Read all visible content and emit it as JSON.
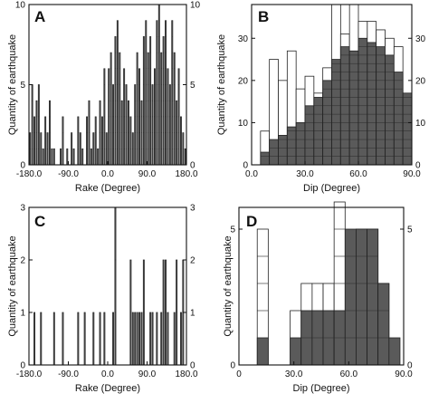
{
  "chart_data": [
    {
      "panel": "A",
      "type": "bar",
      "xlabel": "Rake (Degree)",
      "ylabel": "Quantity of earthquake",
      "xlim": [
        -180,
        180
      ],
      "ylim": [
        0,
        10
      ],
      "x_ticks": [
        "-180.0",
        "-90.0",
        "0.0",
        "90.0",
        "180.0"
      ],
      "y_ticks": [
        "0",
        "5",
        "10"
      ],
      "bin_width": 5,
      "bins_start": [
        -180,
        -175,
        -170,
        -165,
        -160,
        -155,
        -150,
        -145,
        -140,
        -135,
        -130,
        -125,
        -120,
        -115,
        -110,
        -105,
        -100,
        -95,
        -90,
        -85,
        -80,
        -75,
        -70,
        -65,
        -60,
        -55,
        -50,
        -45,
        -40,
        -35,
        -30,
        -25,
        -20,
        -15,
        -10,
        -5,
        0,
        5,
        10,
        15,
        20,
        25,
        30,
        35,
        40,
        45,
        50,
        55,
        60,
        65,
        70,
        75,
        80,
        85,
        90,
        95,
        100,
        105,
        110,
        115,
        120,
        125,
        130,
        135,
        140,
        145,
        150,
        155,
        160,
        165,
        170,
        175
      ],
      "values": [
        2,
        5,
        3,
        4,
        5,
        2,
        1,
        3,
        2,
        4,
        1,
        1,
        0,
        0,
        1,
        3,
        0,
        1,
        0,
        2,
        1,
        0,
        3,
        2,
        1,
        0,
        3,
        4,
        1,
        2,
        3,
        1,
        4,
        3,
        6,
        2,
        6,
        7,
        5,
        8,
        9,
        7,
        4,
        6,
        5,
        4,
        3,
        2,
        5,
        7,
        6,
        4,
        8,
        9,
        7,
        8,
        5,
        6,
        9,
        10,
        7,
        8,
        9,
        6,
        5,
        9,
        7,
        4,
        6,
        3,
        2,
        1
      ]
    },
    {
      "panel": "B",
      "type": "bar",
      "xlabel": "Dip (Degree)",
      "ylabel": "Quantity of earthquake",
      "xlim": [
        0,
        90
      ],
      "ylim": [
        0,
        38
      ],
      "x_ticks": [
        "0.0",
        "30.0",
        "60.0",
        "90.0"
      ],
      "y_ticks": [
        "0",
        "10",
        "20",
        "30"
      ],
      "bin_width": 5,
      "bins_start": [
        5,
        10,
        15,
        20,
        25,
        30,
        35,
        40,
        45,
        50,
        55,
        60,
        65,
        70,
        75,
        80,
        85
      ],
      "series": [
        {
          "name": "filled",
          "values": [
            3,
            6,
            7,
            9,
            10,
            14,
            16,
            20,
            25,
            28,
            27,
            30,
            29,
            28,
            26,
            22,
            17
          ]
        },
        {
          "name": "open",
          "values": [
            8,
            25,
            20,
            27,
            18,
            21,
            17,
            23,
            38,
            31,
            38,
            34,
            34,
            32,
            30,
            28,
            16
          ]
        }
      ]
    },
    {
      "panel": "C",
      "type": "bar",
      "xlabel": "Rake (Degree)",
      "ylabel": "Quantity of earthquake",
      "xlim": [
        -180,
        180
      ],
      "ylim": [
        0,
        3
      ],
      "x_ticks": [
        "-180.0",
        "-90.0",
        "0.0",
        "90.0",
        "180.0"
      ],
      "y_ticks": [
        "0",
        "1",
        "2",
        "3"
      ],
      "bin_width": 5,
      "bins_start": [
        -170,
        -155,
        -125,
        -105,
        -70,
        -55,
        -35,
        -20,
        -10,
        10,
        15,
        50,
        55,
        60,
        65,
        70,
        75,
        80,
        95,
        100,
        110,
        120,
        125,
        130,
        135,
        150,
        155,
        165,
        170
      ],
      "values": [
        1,
        1,
        1,
        1,
        1,
        1,
        1,
        1,
        1,
        1,
        3,
        2,
        1,
        1,
        1,
        1,
        1,
        2,
        1,
        1,
        1,
        1,
        2,
        2,
        1,
        1,
        2,
        1,
        2
      ]
    },
    {
      "panel": "D",
      "type": "bar",
      "xlabel": "Dip (Degree)",
      "ylabel": "Quantity of earthquake",
      "xlim": [
        0,
        90
      ],
      "ylim": [
        0,
        5.8
      ],
      "x_ticks": [
        "0",
        "30.0",
        "60.0",
        "90.0"
      ],
      "y_ticks": [
        "0",
        "5"
      ],
      "bin_width": 6,
      "bins_start": [
        10,
        28,
        34,
        40,
        46,
        52,
        58,
        64,
        70,
        76,
        82
      ],
      "series": [
        {
          "name": "filled",
          "values": [
            1,
            1,
            2,
            2,
            2,
            2,
            5,
            5,
            5,
            3,
            1
          ]
        },
        {
          "name": "open",
          "values": [
            5,
            2,
            3,
            3,
            3,
            6,
            0,
            5,
            5,
            3,
            0
          ]
        }
      ]
    }
  ]
}
